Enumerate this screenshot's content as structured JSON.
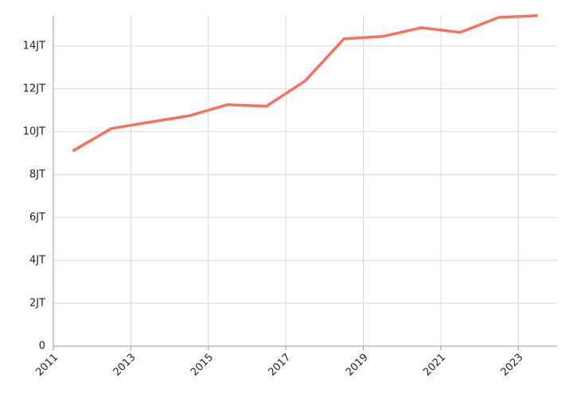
{
  "chart_data": {
    "type": "line",
    "x": [
      2011.5,
      2012.5,
      2013.5,
      2014.5,
      2015.5,
      2016.5,
      2017.5,
      2018.5,
      2019.5,
      2020.5,
      2021.5,
      2022.5,
      2023.5
    ],
    "series": [
      {
        "color": "#f87060",
        "values": [
          9.1,
          10.15,
          10.45,
          10.74,
          11.26,
          11.19,
          12.37,
          14.33,
          14.44,
          14.85,
          14.63,
          15.33,
          15.41
        ]
      }
    ],
    "xlim": [
      2011,
      2024
    ],
    "xticks": [
      2011,
      2013,
      2015,
      2017,
      2019,
      2021,
      2023
    ],
    "ylim": [
      0,
      15.4
    ],
    "yticks": [
      0,
      {
        "value": 2,
        "label": "2JT"
      },
      {
        "value": 4,
        "label": "4JT"
      },
      {
        "value": 6,
        "label": "6JT"
      },
      {
        "value": 8,
        "label": "8JT"
      },
      {
        "value": 10,
        "label": "10JT"
      },
      {
        "value": 12,
        "label": "12JT"
      },
      {
        "value": 14,
        "label": "14JT"
      }
    ],
    "grid": true
  }
}
